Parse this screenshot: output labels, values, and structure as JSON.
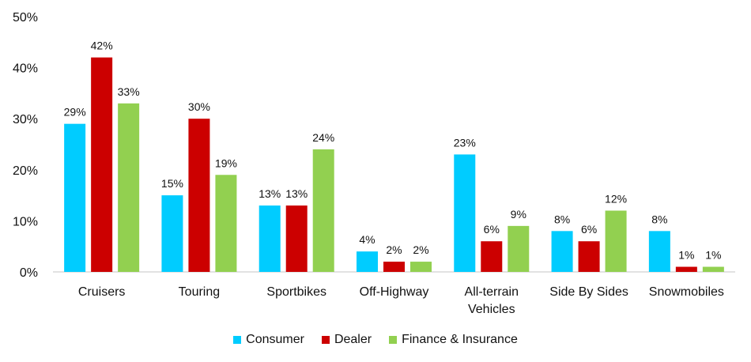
{
  "chart_data": {
    "type": "bar",
    "categories": [
      "Cruisers",
      "Touring",
      "Sportbikes",
      "Off-Highway",
      "All-terrain Vehicles",
      "Side By Sides",
      "Snowmobiles"
    ],
    "category_lines": [
      [
        "Cruisers"
      ],
      [
        "Touring"
      ],
      [
        "Sportbikes"
      ],
      [
        "Off-Highway"
      ],
      [
        "All-terrain",
        "Vehicles"
      ],
      [
        "Side By Sides"
      ],
      [
        "Snowmobiles"
      ]
    ],
    "series": [
      {
        "name": "Consumer",
        "values": [
          29,
          15,
          13,
          4,
          23,
          8,
          8
        ],
        "labels": [
          "29%",
          "15%",
          "13%",
          "4%",
          "23%",
          "8%",
          "8%"
        ],
        "color": "#00CCFF"
      },
      {
        "name": "Dealer",
        "values": [
          42,
          30,
          13,
          2,
          6,
          6,
          1
        ],
        "labels": [
          "42%",
          "30%",
          "13%",
          "2%",
          "6%",
          "6%",
          "1%"
        ],
        "color": "#CC0000"
      },
      {
        "name": "Finance & Insurance",
        "values": [
          33,
          19,
          24,
          2,
          9,
          12,
          1
        ],
        "labels": [
          "33%",
          "19%",
          "24%",
          "2%",
          "9%",
          "12%",
          "1%"
        ],
        "color": "#92D050"
      }
    ],
    "y_ticks": [
      "0%",
      "10%",
      "20%",
      "30%",
      "40%",
      "50%"
    ],
    "ylim": [
      0,
      50
    ],
    "grid": false,
    "legend": "bottom-center",
    "title": "",
    "xlabel": "",
    "ylabel": ""
  }
}
